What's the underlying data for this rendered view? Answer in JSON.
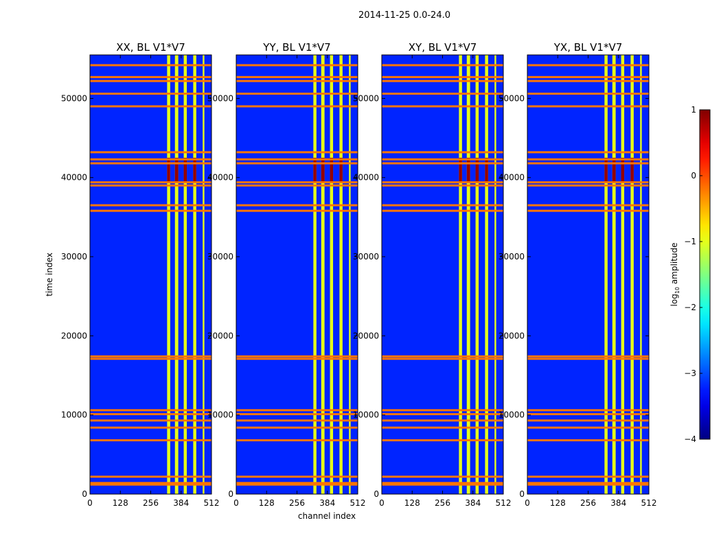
{
  "chart_data": {
    "type": "heatmap",
    "suptitle": "2014-11-25 0.0-24.0",
    "xlabel": "channel index",
    "ylabel": "time index",
    "xlim": [
      0,
      512
    ],
    "ylim": [
      0,
      55500
    ],
    "xticks": [
      "0",
      "128",
      "256",
      "384",
      "512"
    ],
    "yticks": [
      "0",
      "10000",
      "20000",
      "30000",
      "40000",
      "50000"
    ],
    "xtick_values": [
      0,
      128,
      256,
      384,
      512
    ],
    "ytick_values": [
      0,
      10000,
      20000,
      30000,
      40000,
      50000
    ],
    "colorbar": {
      "label_main": "log",
      "label_sub": "10",
      "label_rest": " amplitude",
      "ticks": [
        "1",
        "0",
        "−1",
        "−2",
        "−3",
        "−4"
      ],
      "tick_values": [
        1,
        0,
        -1,
        -2,
        -3,
        -4
      ],
      "range": [
        -4,
        1
      ],
      "colormap": "jet"
    },
    "panels": [
      {
        "title": "XX, BL V1*V7"
      },
      {
        "title": "YY, BL V1*V7"
      },
      {
        "title": "XY, BL V1*V7"
      },
      {
        "title": "YX, BL V1*V7"
      }
    ],
    "structure": {
      "background_level": -3.2,
      "bright_channel_ranges": [
        [
          325,
          338
        ],
        [
          358,
          372
        ],
        [
          395,
          408
        ],
        [
          435,
          448
        ],
        [
          475,
          482
        ]
      ],
      "bright_channel_level": -1.0,
      "flagged_time_rows": [
        1200,
        1400,
        2200,
        6800,
        8400,
        9300,
        10100,
        10600,
        17100,
        17400,
        35800,
        36500,
        39000,
        39400,
        41800,
        42300,
        43200,
        49000,
        50600,
        52200,
        52700,
        54200
      ],
      "flagged_row_level": -0.2,
      "rfi_burst_time_range": [
        39500,
        42500
      ],
      "rfi_burst_level": 0.9
    }
  }
}
